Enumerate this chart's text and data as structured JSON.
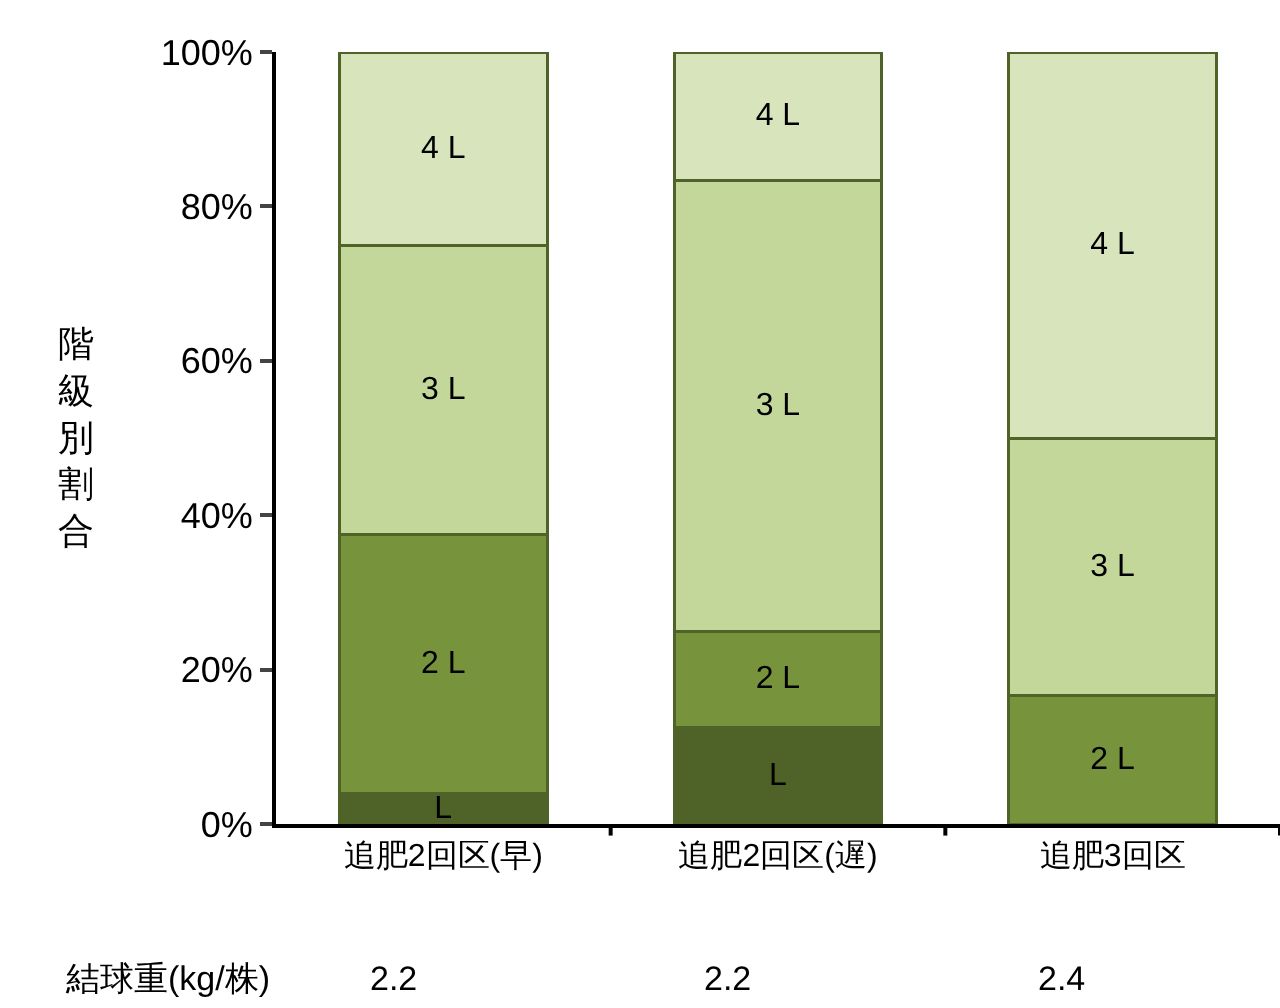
{
  "chart_data": {
    "type": "bar",
    "stacked": true,
    "ylabel": "階級別割合",
    "categories": [
      "追肥2回区(早)",
      "追肥2回区(遅)",
      "追肥3回区"
    ],
    "series": [
      {
        "name": "L",
        "color": "#4f6228",
        "values": [
          4,
          12.5,
          0
        ]
      },
      {
        "name": "2 L",
        "color": "#77933c",
        "values": [
          33.5,
          12.5,
          16.7
        ]
      },
      {
        "name": "3 L",
        "color": "#c4d79b",
        "values": [
          37.5,
          58.3,
          33.3
        ]
      },
      {
        "name": "4 L",
        "color": "#d8e4bc",
        "values": [
          25,
          16.7,
          50
        ]
      }
    ],
    "ylim": [
      0,
      100
    ],
    "yticks": [
      {
        "value": 0,
        "label": "0%"
      },
      {
        "value": 20,
        "label": "20%"
      },
      {
        "value": 40,
        "label": "40%"
      },
      {
        "value": 60,
        "label": "60%"
      },
      {
        "value": 80,
        "label": "80%"
      },
      {
        "value": 100,
        "label": "100%"
      }
    ],
    "legend": false,
    "annotations": [
      "結球重(kg/株)",
      "2.2",
      "2.2",
      "2.4"
    ]
  }
}
